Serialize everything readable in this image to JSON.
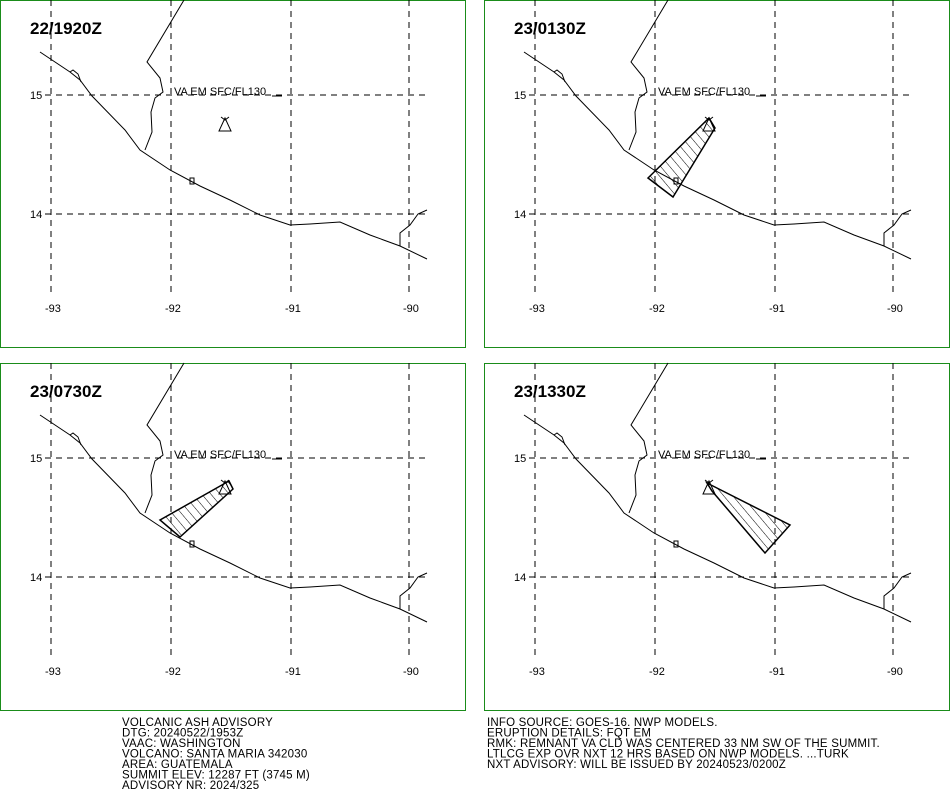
{
  "panels": [
    {
      "time": "22/1920Z",
      "annotation": "VA EM SFC/FL130",
      "ash_cloud": false
    },
    {
      "time": "23/0130Z",
      "annotation": "VA EM SFC/FL130",
      "ash_cloud": true
    },
    {
      "time": "23/0730Z",
      "annotation": "VA EM SFC/FL130",
      "ash_cloud": true
    },
    {
      "time": "23/1330Z",
      "annotation": "VA EM SFC/FL130",
      "ash_cloud": true
    }
  ],
  "longitude_labels": [
    "-93",
    "-92",
    "-91",
    "-90"
  ],
  "latitude_labels": [
    "15",
    "14"
  ],
  "advisory_left": [
    "VOLCANIC ASH ADVISORY",
    "DTG: 20240522/1953Z",
    "VAAC: WASHINGTON",
    "VOLCANO: SANTA MARIA 342030",
    "AREA: GUATEMALA",
    "SUMMIT ELEV: 12287 FT (3745 M)",
    "ADVISORY NR: 2024/325"
  ],
  "advisory_right": [
    "INFO SOURCE: GOES-16. NWP MODELS.",
    "ERUPTION DETAILS: FQT EM",
    "RMK: REMNANT VA CLD WAS CENTERED 33 NM SW OF THE SUMMIT.",
    "LTLCG EXP OVR NXT 12 HRS BASED ON NWP MODELS. ...TURK",
    "NXT ADVISORY: WILL BE ISSUED BY 20240523/0200Z"
  ]
}
